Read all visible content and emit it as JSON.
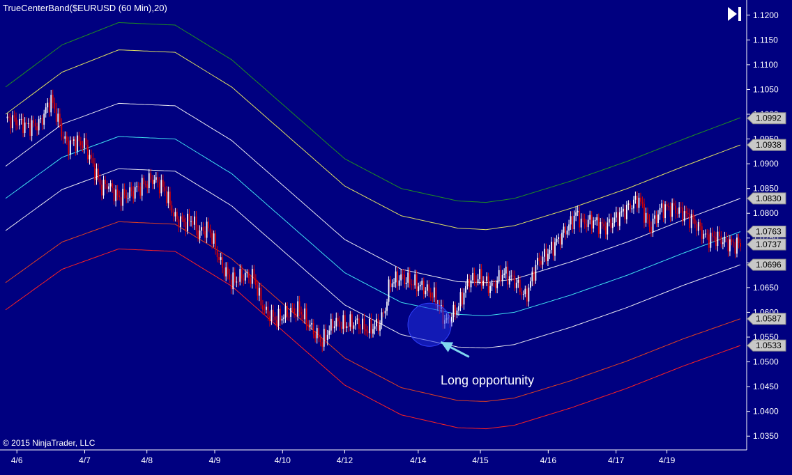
{
  "chart_title": "TrueCenterBand($EURUSD (60 Min),20)",
  "copyright": "© 2015 NinjaTrader, LLC",
  "annotation": {
    "label": "Long opportunity"
  },
  "colors": {
    "background": "#000080",
    "axis_text": "#ffffff",
    "up_candle": "#ffffff",
    "down_candle": "#d40000",
    "band_outer_upper": "#1f8f1f",
    "band_upper": "#e0e060",
    "band_inner_upper": "#e8e8f0",
    "band_center_upper": "#40e0f0",
    "band_center_lower": "#e8e8f0",
    "band_lower": "#e04020",
    "band_outer_lower": "#ff2020",
    "highlight_circle": "#2030e0",
    "arrow": "#7fd7f0"
  },
  "chart_data": {
    "type": "line",
    "title": "TrueCenterBand($EURUSD (60 Min),20)",
    "x_tick_labels": [
      "4/6",
      "4/7",
      "4/8",
      "4/9",
      "4/10",
      "4/12",
      "4/14",
      "4/15",
      "4/16",
      "4/17",
      "4/19"
    ],
    "x_tick_index": [
      2,
      14,
      25,
      37,
      49,
      60,
      73,
      84,
      96,
      108,
      117
    ],
    "x_range": [
      0,
      130
    ],
    "y_tick_labels": [
      "1.1200",
      "1.1150",
      "1.1100",
      "1.1050",
      "1.1000",
      "1.0950",
      "1.0900",
      "1.0850",
      "1.0800",
      "1.0750",
      "1.0700",
      "1.0650",
      "1.0600",
      "1.0550",
      "1.0500",
      "1.0450",
      "1.0400",
      "1.0350"
    ],
    "ylim": [
      1.0325,
      1.1225
    ],
    "grid": false,
    "price_labels": [
      {
        "value": 1.0992,
        "label": "1.0992"
      },
      {
        "value": 1.0938,
        "label": "1.0938"
      },
      {
        "value": 1.083,
        "label": "1.0830"
      },
      {
        "value": 1.0763,
        "label": "1.0763"
      },
      {
        "value": 1.0737,
        "label": "1.0737"
      },
      {
        "value": 1.0696,
        "label": "1.0696"
      },
      {
        "value": 1.0587,
        "label": "1.0587"
      },
      {
        "value": 1.0533,
        "label": "1.0533"
      }
    ],
    "bands": [
      {
        "key": "outer_upper",
        "x": [
          0,
          10,
          20,
          30,
          40,
          50,
          60,
          70,
          80,
          85,
          90,
          100,
          110,
          120,
          130
        ],
        "values": [
          1.1055,
          1.114,
          1.1185,
          1.118,
          1.111,
          1.101,
          1.091,
          1.085,
          1.0825,
          1.0822,
          1.083,
          1.0865,
          1.0905,
          1.095,
          1.0993
        ]
      },
      {
        "key": "upper",
        "x": [
          0,
          10,
          20,
          30,
          40,
          50,
          60,
          70,
          80,
          85,
          90,
          100,
          110,
          120,
          130
        ],
        "values": [
          1.1,
          1.1085,
          1.113,
          1.1125,
          1.1055,
          1.0955,
          1.0855,
          1.0795,
          1.077,
          1.0767,
          1.0775,
          1.081,
          1.085,
          1.0895,
          1.0938
        ]
      },
      {
        "key": "inner_upper",
        "x": [
          0,
          10,
          20,
          30,
          40,
          50,
          60,
          70,
          80,
          85,
          90,
          100,
          110,
          120,
          130
        ],
        "values": [
          1.0895,
          1.098,
          1.1022,
          1.1017,
          1.0947,
          1.0847,
          1.0747,
          1.0687,
          1.0662,
          1.066,
          1.0667,
          1.0702,
          1.0742,
          1.0787,
          1.083
        ]
      },
      {
        "key": "center_upper",
        "x": [
          0,
          10,
          20,
          30,
          40,
          50,
          60,
          70,
          80,
          85,
          90,
          100,
          110,
          120,
          130
        ],
        "values": [
          1.083,
          1.0913,
          1.0955,
          1.095,
          1.088,
          1.078,
          1.068,
          1.062,
          1.0596,
          1.0593,
          1.06,
          1.0635,
          1.0675,
          1.072,
          1.0763
        ]
      },
      {
        "key": "center_lower",
        "x": [
          0,
          10,
          20,
          30,
          40,
          50,
          60,
          70,
          80,
          85,
          90,
          100,
          110,
          120,
          130
        ],
        "values": [
          1.0765,
          1.0848,
          1.089,
          1.0885,
          1.0815,
          1.0715,
          1.0615,
          1.0555,
          1.053,
          1.0528,
          1.0535,
          1.057,
          1.061,
          1.0655,
          1.0696
        ]
      },
      {
        "key": "lower",
        "x": [
          0,
          10,
          20,
          30,
          40,
          50,
          60,
          70,
          80,
          85,
          90,
          100,
          110,
          120,
          130
        ],
        "values": [
          1.066,
          1.0742,
          1.0783,
          1.0778,
          1.0708,
          1.0608,
          1.0508,
          1.0448,
          1.0422,
          1.042,
          1.0427,
          1.0462,
          1.0502,
          1.0547,
          1.0587
        ]
      },
      {
        "key": "outer_lower",
        "x": [
          0,
          10,
          20,
          30,
          40,
          50,
          60,
          70,
          80,
          85,
          90,
          100,
          110,
          120,
          130
        ],
        "values": [
          1.0605,
          1.0687,
          1.0728,
          1.0723,
          1.0653,
          1.0553,
          1.0453,
          1.0393,
          1.0367,
          1.0365,
          1.0372,
          1.0407,
          1.0447,
          1.0492,
          1.0533
        ]
      }
    ],
    "price": {
      "x": [
        0,
        2,
        4,
        6,
        8,
        9,
        10,
        11,
        12,
        14,
        16,
        17,
        18,
        20,
        22,
        24,
        26,
        28,
        30,
        32,
        33,
        34,
        36,
        38,
        40,
        42,
        44,
        45,
        46,
        48,
        50,
        52,
        54,
        56,
        58,
        60,
        62,
        64,
        66,
        67,
        68,
        70,
        72,
        74,
        76,
        77,
        78,
        80,
        82,
        84,
        86,
        88,
        90,
        92,
        94,
        96,
        98,
        100,
        101,
        102,
        104,
        106,
        108,
        110,
        112,
        113,
        114,
        116,
        118,
        120,
        122,
        124,
        126,
        128,
        129
      ],
      "values": [
        1.0992,
        1.0985,
        1.0975,
        1.098,
        1.103,
        1.1,
        1.096,
        1.0935,
        1.0945,
        1.094,
        1.088,
        1.085,
        1.086,
        1.083,
        1.084,
        1.0855,
        1.087,
        1.085,
        1.079,
        1.078,
        1.079,
        1.076,
        1.077,
        1.07,
        1.066,
        1.0675,
        1.067,
        1.0625,
        1.06,
        1.0585,
        1.06,
        1.0605,
        1.057,
        1.054,
        1.058,
        1.0575,
        1.058,
        1.0565,
        1.0575,
        1.06,
        1.066,
        1.067,
        1.066,
        1.065,
        1.063,
        1.06,
        1.058,
        1.061,
        1.0665,
        1.067,
        1.065,
        1.068,
        1.0665,
        1.063,
        1.07,
        1.072,
        1.075,
        1.078,
        1.08,
        1.078,
        1.0785,
        1.077,
        1.079,
        1.081,
        1.083,
        1.08,
        1.077,
        1.081,
        1.081,
        1.08,
        1.078,
        1.075,
        1.075,
        1.074,
        1.0737
      ]
    },
    "highlight": {
      "x": 75,
      "value": 1.0575
    },
    "arrow": {
      "from_x": 82,
      "from_value": 1.051,
      "to_x": 77,
      "to_value": 1.054
    }
  }
}
